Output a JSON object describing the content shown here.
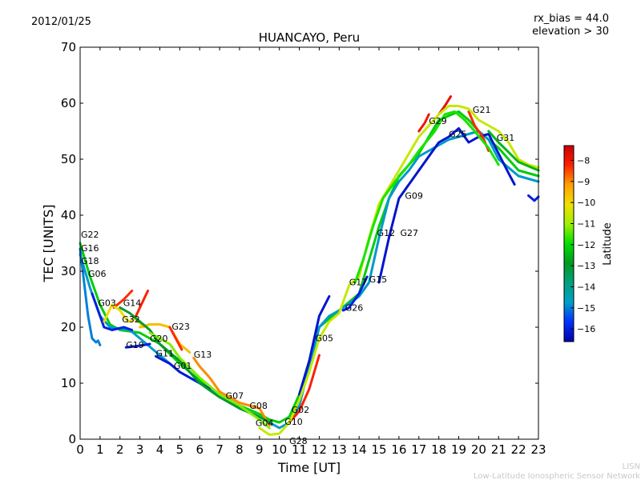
{
  "header": {
    "date": "2012/01/25",
    "rx_bias": "rx_bias = 44.0",
    "elevation": "elevation > 30"
  },
  "footer": {
    "org_short": "LISN",
    "org_long": "Low-Latitude Ionospheric Sensor Network"
  },
  "chart_data": {
    "type": "line",
    "title": "HUANCAYO, Peru",
    "xlabel": "Time [UT]",
    "ylabel": "TEC [UNITS]",
    "xlim": [
      0,
      23
    ],
    "ylim": [
      0,
      70
    ],
    "xticks": [
      "0",
      "1",
      "2",
      "3",
      "4",
      "5",
      "6",
      "7",
      "8",
      "9",
      "10",
      "11",
      "12",
      "13",
      "14",
      "15",
      "16",
      "17",
      "18",
      "19",
      "20",
      "21",
      "22",
      "23"
    ],
    "yticks": [
      "0",
      "10",
      "20",
      "30",
      "40",
      "50",
      "60",
      "70"
    ],
    "grid": false,
    "colorbar": {
      "label": "Latitude",
      "range": [
        -16.6,
        -7.3
      ],
      "ticks": [
        "−8",
        "−9",
        "−10",
        "−11",
        "−12",
        "−13",
        "−14",
        "−15",
        "−16"
      ],
      "tick_values": [
        -8,
        -9,
        -10,
        -11,
        -12,
        -13,
        -14,
        -15,
        -16
      ],
      "stops": [
        "#0000a8",
        "#0030ff",
        "#00a0c8",
        "#00a080",
        "#009a20",
        "#00e000",
        "#a0f000",
        "#f0e000",
        "#ffa000",
        "#ff2000",
        "#c80000"
      ]
    },
    "series": [
      {
        "name": "green-main",
        "lat": -12.2,
        "points": [
          [
            0,
            35
          ],
          [
            0.5,
            29
          ],
          [
            1,
            24
          ],
          [
            1.5,
            20.5
          ],
          [
            2,
            19.5
          ],
          [
            3,
            19
          ],
          [
            4,
            17
          ],
          [
            5,
            13.5
          ],
          [
            6,
            10.5
          ],
          [
            7,
            8
          ],
          [
            8,
            6
          ],
          [
            9,
            4.5
          ],
          [
            9.5,
            3.5
          ],
          [
            10,
            3
          ],
          [
            10.5,
            4
          ],
          [
            11,
            8
          ],
          [
            11.5,
            14
          ],
          [
            12,
            20
          ],
          [
            13,
            23
          ],
          [
            14,
            26
          ],
          [
            14.5,
            32
          ],
          [
            15,
            38
          ],
          [
            15.5,
            43
          ],
          [
            16,
            47
          ],
          [
            17,
            51
          ],
          [
            17.5,
            54
          ],
          [
            18,
            57
          ],
          [
            19,
            58.5
          ],
          [
            19.5,
            57
          ],
          [
            20,
            55
          ],
          [
            21,
            52
          ],
          [
            22,
            48
          ],
          [
            23,
            47
          ]
        ]
      },
      {
        "name": "cyan-main",
        "lat": -14.8,
        "points": [
          [
            0,
            33
          ],
          [
            0.5,
            27
          ],
          [
            1,
            22
          ],
          [
            1.5,
            20
          ],
          [
            2.5,
            19.5
          ],
          [
            3,
            18
          ],
          [
            4,
            15
          ],
          [
            5,
            12
          ],
          [
            6,
            10
          ],
          [
            7,
            8
          ],
          [
            8,
            5.5
          ],
          [
            9,
            4
          ],
          [
            10,
            2
          ],
          [
            10.5,
            3
          ],
          [
            11,
            6
          ],
          [
            11.5,
            13
          ],
          [
            12,
            20
          ],
          [
            12.5,
            22
          ],
          [
            13,
            23
          ],
          [
            14,
            25.5
          ],
          [
            14.5,
            28
          ],
          [
            15,
            36
          ],
          [
            15.5,
            43
          ],
          [
            16,
            46
          ],
          [
            16.5,
            48
          ],
          [
            17,
            50.5
          ],
          [
            18,
            52.5
          ],
          [
            18.5,
            53.5
          ],
          [
            19,
            54
          ],
          [
            20,
            55
          ],
          [
            20.5,
            53.5
          ],
          [
            21,
            50
          ],
          [
            22,
            47
          ],
          [
            23,
            46
          ]
        ]
      },
      {
        "name": "cyan-short",
        "lat": -15.0,
        "points": [
          [
            0,
            34
          ],
          [
            0.2,
            28
          ],
          [
            0.4,
            22
          ],
          [
            0.6,
            18
          ],
          [
            0.8,
            17.3
          ],
          [
            0.9,
            17.6
          ],
          [
            1,
            16.8
          ]
        ]
      },
      {
        "name": "blue-early",
        "lat": -16.0,
        "points": [
          [
            0.6,
            26
          ],
          [
            0.9,
            23
          ],
          [
            1.2,
            20
          ],
          [
            1.6,
            19.5
          ],
          [
            2.2,
            20
          ],
          [
            2.6,
            19.5
          ]
        ]
      },
      {
        "name": "blue-rise",
        "lat": -16.2,
        "points": [
          [
            11,
            8
          ],
          [
            11.5,
            14
          ],
          [
            12,
            22
          ],
          [
            12.5,
            25.5
          ]
        ]
      },
      {
        "name": "blue-day",
        "lat": -16.2,
        "points": [
          [
            15,
            28
          ],
          [
            15.5,
            36
          ],
          [
            16,
            43
          ],
          [
            17,
            48
          ],
          [
            18,
            53
          ],
          [
            18.5,
            54
          ],
          [
            19,
            55.5
          ],
          [
            19.5,
            53
          ],
          [
            20,
            54
          ],
          [
            20.5,
            54.5
          ],
          [
            21,
            51
          ],
          [
            21.5,
            47.5
          ],
          [
            21.8,
            45.5
          ]
        ]
      },
      {
        "name": "blue-end",
        "lat": -16.0,
        "points": [
          [
            22.5,
            43.5
          ],
          [
            22.8,
            42.6
          ],
          [
            23,
            43.3
          ]
        ]
      },
      {
        "name": "red-rise",
        "lat": -8.2,
        "points": [
          [
            10.5,
            3
          ],
          [
            11,
            5
          ],
          [
            11.5,
            9
          ],
          [
            12,
            15
          ]
        ]
      },
      {
        "name": "red-g29",
        "lat": -8.0,
        "points": [
          [
            17,
            55
          ],
          [
            17.3,
            56.5
          ],
          [
            17.5,
            58
          ]
        ]
      },
      {
        "name": "red-peak",
        "lat": -7.8,
        "points": [
          [
            18,
            58
          ],
          [
            18.3,
            59.5
          ],
          [
            18.6,
            61.2
          ]
        ]
      },
      {
        "name": "red-g21",
        "lat": -8.3,
        "points": [
          [
            19.5,
            58.5
          ],
          [
            19.8,
            56
          ],
          [
            20.2,
            54
          ],
          [
            20.5,
            51.5
          ]
        ]
      },
      {
        "name": "yellow-main",
        "lat": -10.6,
        "points": [
          [
            9,
            2
          ],
          [
            9.5,
            0.8
          ],
          [
            10,
            1
          ],
          [
            10.5,
            3
          ],
          [
            11,
            7
          ],
          [
            11.5,
            12
          ],
          [
            12,
            18
          ],
          [
            12.5,
            21
          ],
          [
            13,
            22.5
          ],
          [
            13.5,
            27.5
          ],
          [
            14,
            29
          ],
          [
            14.5,
            36
          ],
          [
            15,
            42
          ],
          [
            16,
            48
          ],
          [
            17,
            54
          ],
          [
            17.5,
            56
          ],
          [
            18,
            58
          ],
          [
            18.5,
            59.5
          ],
          [
            19,
            59.5
          ],
          [
            19.5,
            59
          ],
          [
            20,
            57
          ],
          [
            20.5,
            56
          ],
          [
            21,
            55
          ],
          [
            21.5,
            53
          ],
          [
            22,
            50
          ],
          [
            22.5,
            49
          ],
          [
            23,
            48.5
          ]
        ]
      },
      {
        "name": "green-g31",
        "lat": -12.5,
        "points": [
          [
            20.5,
            55
          ],
          [
            21,
            53
          ],
          [
            22,
            49.5
          ],
          [
            23,
            48
          ]
        ]
      },
      {
        "name": "green-day2",
        "lat": -11.8,
        "points": [
          [
            13.8,
            28
          ],
          [
            14.2,
            32
          ],
          [
            14.7,
            38
          ],
          [
            15.2,
            43
          ],
          [
            15.8,
            46
          ],
          [
            16.5,
            49
          ],
          [
            17,
            51.5
          ],
          [
            17.8,
            55
          ],
          [
            18.3,
            58
          ],
          [
            18.8,
            58.5
          ],
          [
            19.3,
            57
          ],
          [
            19.8,
            55
          ],
          [
            20.5,
            52
          ],
          [
            21,
            49
          ]
        ]
      },
      {
        "name": "red-g14a",
        "lat": -8.3,
        "points": [
          [
            1.7,
            23.5
          ],
          [
            2.2,
            25
          ],
          [
            2.6,
            26.5
          ]
        ]
      },
      {
        "name": "red-g14b",
        "lat": -8.2,
        "points": [
          [
            2.8,
            22
          ],
          [
            3.2,
            25
          ],
          [
            3.4,
            26.5
          ]
        ]
      },
      {
        "name": "yellow-g14",
        "lat": -10.0,
        "points": [
          [
            1.2,
            21
          ],
          [
            1.6,
            24
          ],
          [
            2,
            23
          ],
          [
            2.4,
            21
          ],
          [
            2.8,
            21.5
          ],
          [
            3.2,
            20
          ]
        ]
      },
      {
        "name": "g23",
        "lat": -9.6,
        "points": [
          [
            3,
            20
          ],
          [
            3.5,
            20.5
          ],
          [
            4,
            20.5
          ],
          [
            4.5,
            20
          ],
          [
            5,
            17
          ],
          [
            5.5,
            15.5
          ]
        ]
      },
      {
        "name": "g23-red",
        "lat": -8.3,
        "points": [
          [
            4.5,
            20
          ],
          [
            4.8,
            18
          ],
          [
            5.1,
            16
          ]
        ]
      },
      {
        "name": "g13",
        "lat": -9.0,
        "points": [
          [
            5.7,
            14.5
          ],
          [
            6,
            13
          ],
          [
            6.5,
            11
          ],
          [
            7,
            8.5
          ],
          [
            8,
            6.5
          ],
          [
            9,
            5.5
          ],
          [
            9.5,
            2.5
          ]
        ]
      },
      {
        "name": "g19",
        "lat": -16.0,
        "points": [
          [
            2.3,
            16.4
          ],
          [
            3,
            16.7
          ],
          [
            3.5,
            17
          ]
        ]
      },
      {
        "name": "g11",
        "lat": -16.1,
        "points": [
          [
            3.8,
            14.8
          ],
          [
            4.5,
            13.5
          ],
          [
            5,
            12
          ],
          [
            6,
            10
          ],
          [
            6.5,
            9
          ]
        ]
      },
      {
        "name": "g32",
        "lat": -13.0,
        "points": [
          [
            2,
            23.5
          ],
          [
            2.5,
            22.5
          ],
          [
            3,
            21
          ],
          [
            3.5,
            19.5
          ],
          [
            4,
            17
          ],
          [
            5,
            14
          ],
          [
            6,
            10
          ],
          [
            7,
            7.5
          ],
          [
            8,
            5.5
          ],
          [
            9,
            4
          ],
          [
            9.5,
            3
          ]
        ]
      },
      {
        "name": "g20",
        "lat": -11.2,
        "points": [
          [
            3.5,
            19
          ],
          [
            4,
            18
          ],
          [
            4.5,
            17
          ],
          [
            5,
            14.5
          ],
          [
            6,
            11
          ],
          [
            7,
            8
          ],
          [
            8,
            6
          ],
          [
            9,
            3.5
          ],
          [
            9.5,
            2
          ]
        ]
      },
      {
        "name": "g26",
        "lat": -16.0,
        "points": [
          [
            13.2,
            23
          ],
          [
            13.5,
            23.5
          ],
          [
            14,
            26
          ],
          [
            14.4,
            29
          ]
        ]
      }
    ],
    "annotations": [
      {
        "text": "G22",
        "x": 0.0,
        "y": 36.0
      },
      {
        "text": "G16",
        "x": 0.0,
        "y": 35.3
      },
      {
        "text": "G18",
        "x": 0.0,
        "y": 33.0
      },
      {
        "text": "G06",
        "x": 0.4,
        "y": 29.0
      },
      {
        "text": "G03",
        "x": 0.9,
        "y": 23.8
      },
      {
        "text": "G14",
        "x": 1.6,
        "y": 23.8
      },
      {
        "text": "G32",
        "x": 2.1,
        "y": 22.6
      },
      {
        "text": "G23",
        "x": 4.6,
        "y": 19.6
      },
      {
        "text": "G19",
        "x": 2.3,
        "y": 16.3
      },
      {
        "text": "G20",
        "x": 3.5,
        "y": 17.4
      },
      {
        "text": "G11",
        "x": 3.8,
        "y": 14.8
      },
      {
        "text": "G01",
        "x": 4.7,
        "y": 12.6
      },
      {
        "text": "G13",
        "x": 5.7,
        "y": 14.6
      },
      {
        "text": "G07",
        "x": 7.3,
        "y": 7.2
      },
      {
        "text": "G08",
        "x": 8.5,
        "y": 5.4
      },
      {
        "text": "G04",
        "x": 8.8,
        "y": 4.1
      },
      {
        "text": "G10",
        "x": 9.7,
        "y": 2.6
      },
      {
        "text": "G28",
        "x": 10.5,
        "y": 2.6
      },
      {
        "text": "G02",
        "x": 10.6,
        "y": 3.0
      },
      {
        "text": "G05",
        "x": 11.8,
        "y": 17.5
      },
      {
        "text": "G26",
        "x": 13.3,
        "y": 22.9
      },
      {
        "text": "G17",
        "x": 13.5,
        "y": 27.5
      },
      {
        "text": "G15",
        "x": 14.5,
        "y": 28.0
      },
      {
        "text": "G12",
        "x": 14.9,
        "y": 36.3
      },
      {
        "text": "G27",
        "x": 15.5,
        "y": 36.3
      },
      {
        "text": "G09",
        "x": 16.3,
        "y": 42.9
      },
      {
        "text": "G29",
        "x": 17.5,
        "y": 56.3
      },
      {
        "text": "G25",
        "x": 18.5,
        "y": 53.9
      },
      {
        "text": "G21",
        "x": 19.7,
        "y": 58.3
      },
      {
        "text": "G31",
        "x": 20.9,
        "y": 53.3
      }
    ]
  }
}
